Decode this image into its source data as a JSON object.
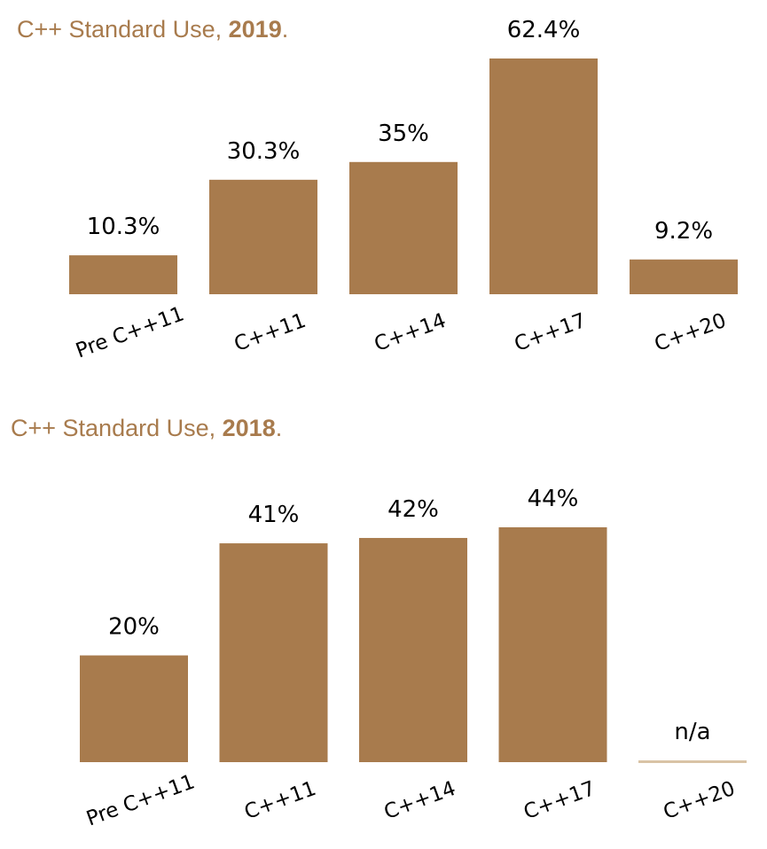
{
  "chart_data": [
    {
      "type": "bar",
      "title": "C++ Standard Use, 2019.",
      "title_prefix": "C++ Standard Use, ",
      "title_year": "2019",
      "title_suffix": ".",
      "categories": [
        "Pre C++11",
        "C++11",
        "C++14",
        "C++17",
        "C++20"
      ],
      "values": [
        10.3,
        30.3,
        35,
        62.4,
        9.2
      ],
      "value_labels": [
        "10.3%",
        "30.3%",
        "35%",
        "62.4%",
        "9.2%"
      ],
      "xlabel": "",
      "ylabel": "",
      "ylim": [
        0,
        62.4
      ],
      "grid": false,
      "bar_color": "#a87b4d"
    },
    {
      "type": "bar",
      "title": "C++ Standard Use, 2018.",
      "title_prefix": "C++ Standard Use, ",
      "title_year": "2018",
      "title_suffix": ".",
      "categories": [
        "Pre C++11",
        "C++11",
        "C++14",
        "C++17",
        "C++20"
      ],
      "values": [
        20,
        41,
        42,
        44,
        null
      ],
      "value_labels": [
        "20%",
        "41%",
        "42%",
        "44%",
        "n/a"
      ],
      "xlabel": "",
      "ylabel": "",
      "ylim": [
        0,
        44
      ],
      "grid": false,
      "bar_color": "#a87b4d"
    }
  ]
}
